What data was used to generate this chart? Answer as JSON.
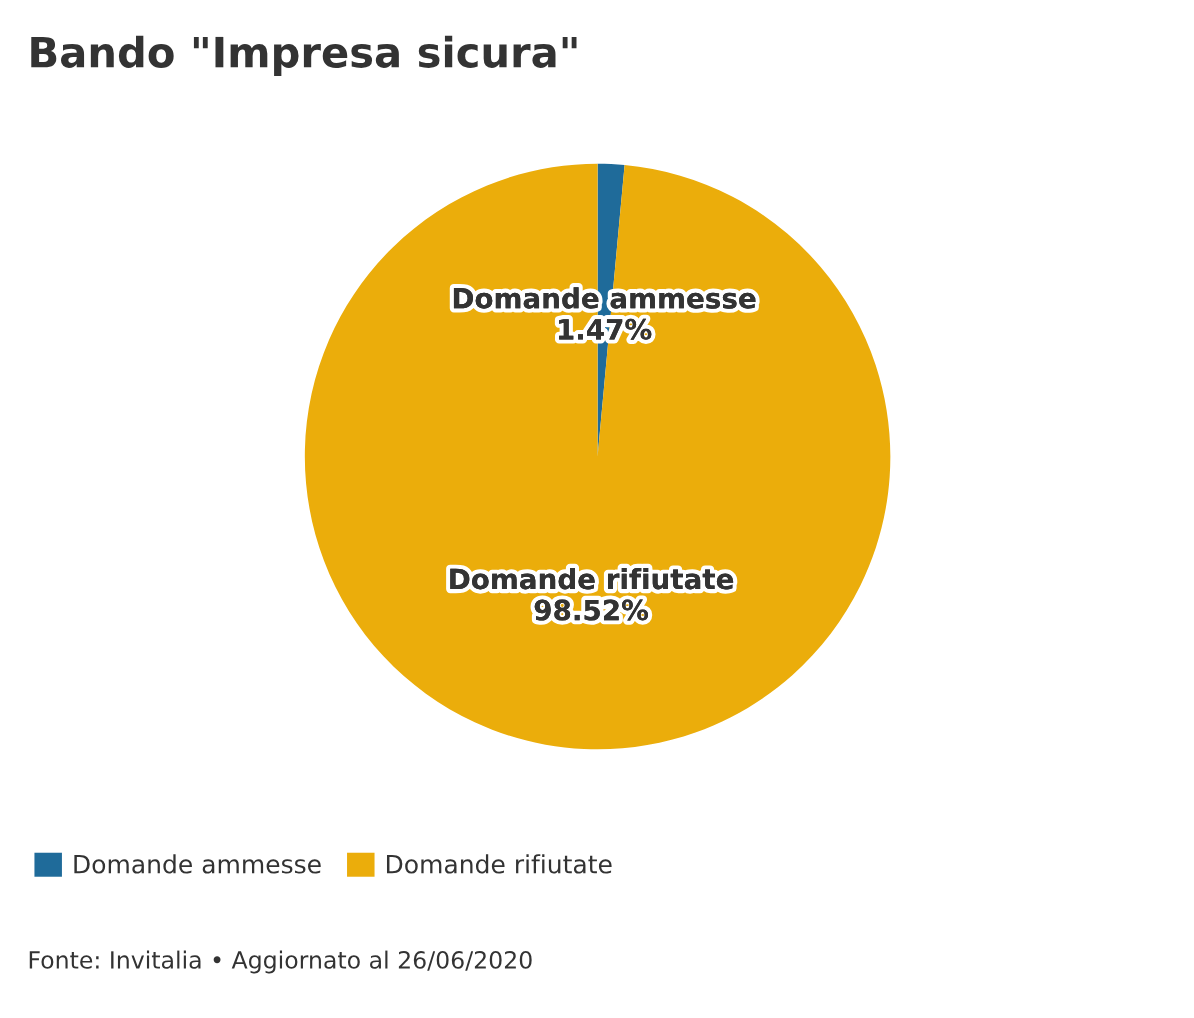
{
  "chart_data": {
    "type": "pie",
    "title": "Bando \"Impresa sicura\"",
    "categories": [
      "Domande ammesse",
      "Domande rifiutate"
    ],
    "values": [
      1.47,
      98.52
    ],
    "value_labels": [
      "1.47%",
      "98.52%"
    ],
    "colors": [
      "#1f6b9a",
      "#ebad0b"
    ],
    "legend": "bottom left",
    "annotations": [
      "Fonte: Invitalia • Aggiornato al 26/06/2020"
    ]
  }
}
